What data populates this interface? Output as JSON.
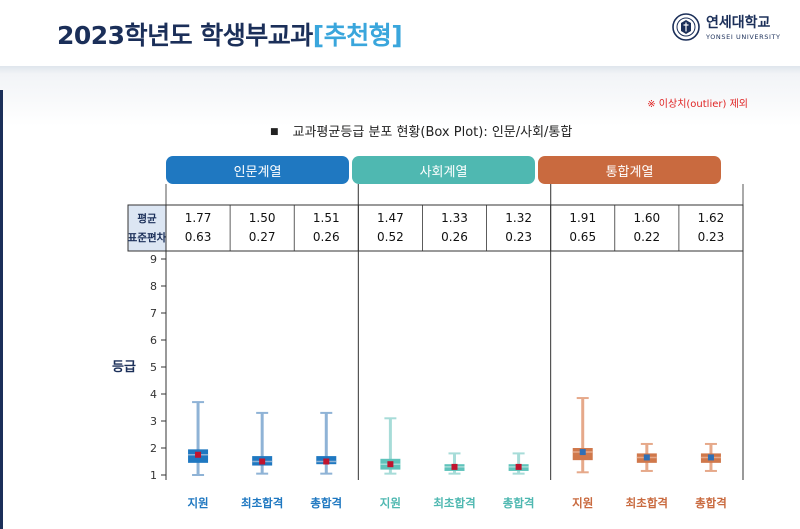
{
  "header": {
    "title_main": "2023학년도 학생부교과",
    "title_highlight": "[추천형]",
    "logo_korean": "연세대학교",
    "logo_english": "YONSEI UNIVERSITY"
  },
  "note": "※ 이상치(outlier) 제외",
  "subtitle": "교과평균등급 분포 현황(Box Plot): 인문/사회/통합",
  "bullet": "■",
  "colors": {
    "navy": "#1b2f59",
    "highlight": "#3aa6dc",
    "note_red": "#e02424",
    "median_marker": "#c0142e",
    "mean_marker": "#2f6fb5"
  },
  "chart_data": {
    "type": "box",
    "ylabel": "등급",
    "ylim": [
      1,
      9
    ],
    "yticks": [
      "1",
      "2",
      "3",
      "4",
      "5",
      "6",
      "7",
      "8",
      "9"
    ],
    "stats_row_label_1": "평균",
    "stats_row_label_2": "표준편차",
    "groups": [
      {
        "name": "인문계열",
        "header_color": "#1f78c1",
        "whisker_color": "#8fb3d6",
        "box_color": "#1f78c1",
        "label_color": "#1f78c1",
        "marker": "median_marker",
        "series": [
          {
            "category": "지원",
            "mean": "1.77",
            "sd": "0.63",
            "min": 1.0,
            "q1": 1.45,
            "median": 1.75,
            "q3": 1.95,
            "max": 3.7
          },
          {
            "category": "최초합격",
            "mean": "1.50",
            "sd": "0.27",
            "min": 1.05,
            "q1": 1.35,
            "median": 1.5,
            "q3": 1.7,
            "max": 3.3
          },
          {
            "category": "총합격",
            "mean": "1.51",
            "sd": "0.26",
            "min": 1.05,
            "q1": 1.4,
            "median": 1.5,
            "q3": 1.7,
            "max": 3.3
          }
        ]
      },
      {
        "name": "사회계열",
        "header_color": "#4fb8b1",
        "whisker_color": "#a7dcd8",
        "box_color": "#5fc3bb",
        "label_color": "#4fb8b1",
        "marker": "median_marker",
        "series": [
          {
            "category": "지원",
            "mean": "1.47",
            "sd": "0.52",
            "min": 1.05,
            "q1": 1.2,
            "median": 1.4,
            "q3": 1.6,
            "max": 3.1
          },
          {
            "category": "최초합격",
            "mean": "1.33",
            "sd": "0.26",
            "min": 1.05,
            "q1": 1.15,
            "median": 1.3,
            "q3": 1.4,
            "max": 1.8
          },
          {
            "category": "총합격",
            "mean": "1.32",
            "sd": "0.23",
            "min": 1.05,
            "q1": 1.15,
            "median": 1.3,
            "q3": 1.4,
            "max": 1.8
          }
        ]
      },
      {
        "name": "통합계열",
        "header_color": "#c96a3f",
        "whisker_color": "#e6a98a",
        "box_color": "#d0784b",
        "label_color": "#c96a3f",
        "marker": "mean_marker",
        "series": [
          {
            "category": "지원",
            "mean": "1.91",
            "sd": "0.65",
            "min": 1.1,
            "q1": 1.55,
            "median": 1.85,
            "q3": 2.0,
            "max": 3.85
          },
          {
            "category": "최초합격",
            "mean": "1.60",
            "sd": "0.22",
            "min": 1.15,
            "q1": 1.45,
            "median": 1.65,
            "q3": 1.8,
            "max": 2.15
          },
          {
            "category": "총합격",
            "mean": "1.62",
            "sd": "0.23",
            "min": 1.15,
            "q1": 1.45,
            "median": 1.65,
            "q3": 1.8,
            "max": 2.15
          }
        ]
      }
    ]
  }
}
